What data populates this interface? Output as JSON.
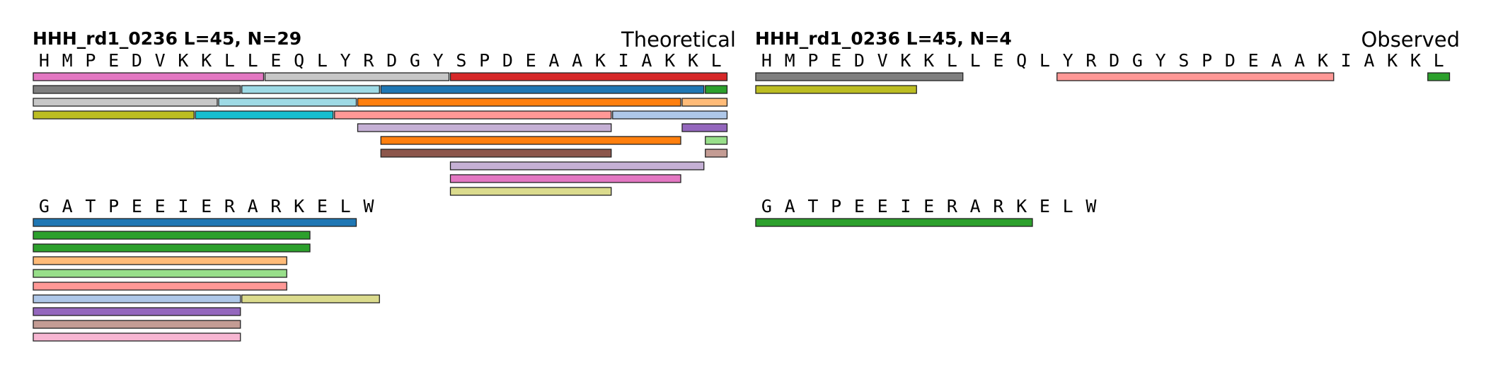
{
  "chart_data": [
    {
      "type": "peptide-coverage",
      "title": "HHH_rd1_0236  L=45, N=29",
      "tag": "Theoretical",
      "sequence_lines": [
        "HMPEDVKKLLEQLYRDGYSPDEAAKIAKKL",
        "GATPEEIERARKELW"
      ],
      "peptides": [
        {
          "start": 1,
          "end": 10,
          "color": "#e377c2"
        },
        {
          "start": 11,
          "end": 18,
          "color": "#c7c7c7"
        },
        {
          "start": 19,
          "end": 30,
          "color": "#d62728"
        },
        {
          "start": 1,
          "end": 9,
          "color": "#7f7f7f"
        },
        {
          "start": 10,
          "end": 15,
          "color": "#9edae5"
        },
        {
          "start": 16,
          "end": 29,
          "color": "#1f77b4"
        },
        {
          "start": 30,
          "end": 30,
          "color": "#2ca02c"
        },
        {
          "start": 1,
          "end": 8,
          "color": "#c7c7c7"
        },
        {
          "start": 9,
          "end": 14,
          "color": "#9edae5"
        },
        {
          "start": 15,
          "end": 28,
          "color": "#ff7f0e"
        },
        {
          "start": 29,
          "end": 30,
          "color": "#ffbb78"
        },
        {
          "start": 1,
          "end": 7,
          "color": "#bcbd22"
        },
        {
          "start": 8,
          "end": 13,
          "color": "#17becf"
        },
        {
          "start": 14,
          "end": 25,
          "color": "#ff9896"
        },
        {
          "start": 26,
          "end": 30,
          "color": "#aec7e8"
        },
        {
          "start": 15,
          "end": 25,
          "color": "#c5b0d5"
        },
        {
          "start": 29,
          "end": 30,
          "color": "#9467bd"
        },
        {
          "start": 16,
          "end": 28,
          "color": "#ff7f0e"
        },
        {
          "start": 30,
          "end": 30,
          "color": "#98df8a"
        },
        {
          "start": 16,
          "end": 25,
          "color": "#8c564b"
        },
        {
          "start": 30,
          "end": 30,
          "color": "#c49c94"
        },
        {
          "start": 19,
          "end": 29,
          "color": "#c5b0d5"
        },
        {
          "start": 19,
          "end": 28,
          "color": "#e377c2"
        },
        {
          "start": 19,
          "end": 25,
          "color": "#dbdb8d"
        },
        {
          "start": 31,
          "end": 44,
          "color": "#1f77b4"
        },
        {
          "start": 31,
          "end": 42,
          "color": "#2ca02c"
        },
        {
          "start": 31,
          "end": 42,
          "color": "#2ca02c"
        },
        {
          "start": 31,
          "end": 41,
          "color": "#ffbb78"
        },
        {
          "start": 31,
          "end": 41,
          "color": "#98df8a"
        },
        {
          "start": 31,
          "end": 41,
          "color": "#ff9896"
        },
        {
          "start": 31,
          "end": 39,
          "color": "#aec7e8"
        },
        {
          "start": 40,
          "end": 45,
          "color": "#dbdb8d"
        },
        {
          "start": 31,
          "end": 39,
          "color": "#9467bd"
        },
        {
          "start": 31,
          "end": 39,
          "color": "#c49c94"
        },
        {
          "start": 31,
          "end": 39,
          "color": "#f7b6d2"
        }
      ]
    },
    {
      "type": "peptide-coverage",
      "title": "HHH_rd1_0236  L=45, N=4",
      "tag": "Observed",
      "sequence_lines": [
        "HMPEDVKKLLEQLYRDGYSPDEAAKIAKKL",
        "GATPEEIERARKELW"
      ],
      "peptides": [
        {
          "start": 1,
          "end": 9,
          "color": "#7f7f7f"
        },
        {
          "start": 14,
          "end": 25,
          "color": "#ff9896"
        },
        {
          "start": 30,
          "end": 30,
          "color": "#2ca02c"
        },
        {
          "start": 1,
          "end": 7,
          "color": "#bcbd22"
        },
        {
          "start": 31,
          "end": 42,
          "color": "#2ca02c"
        }
      ]
    }
  ]
}
